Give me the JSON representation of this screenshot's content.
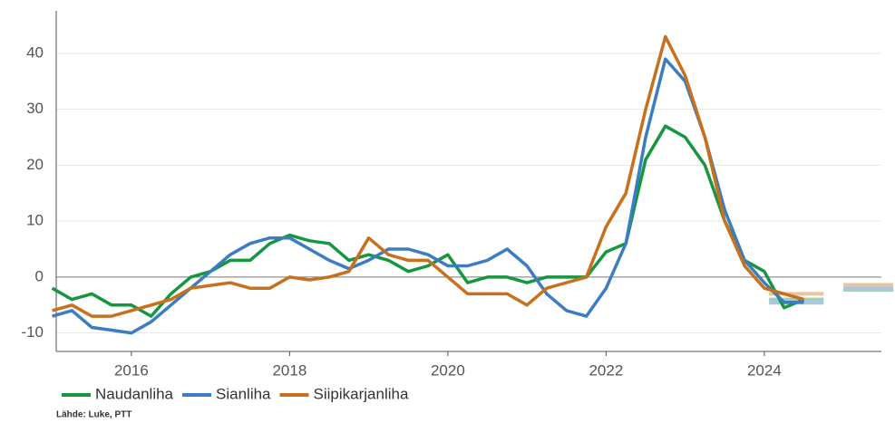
{
  "chart_data": {
    "type": "line",
    "x": [
      2015.0,
      2015.25,
      2015.5,
      2015.75,
      2016.0,
      2016.25,
      2016.5,
      2016.75,
      2017.0,
      2017.25,
      2017.5,
      2017.75,
      2018.0,
      2018.25,
      2018.5,
      2018.75,
      2019.0,
      2019.25,
      2019.5,
      2019.75,
      2020.0,
      2020.25,
      2020.5,
      2020.75,
      2021.0,
      2021.25,
      2021.5,
      2021.75,
      2022.0,
      2022.25,
      2022.5,
      2022.75,
      2023.0,
      2023.25,
      2023.5,
      2023.75,
      2024.0,
      2024.25,
      2024.5
    ],
    "series": [
      {
        "name": "Naudanliha",
        "color": "#15963f",
        "values": [
          -2,
          -4,
          -3,
          -5,
          -5,
          -7,
          -3,
          0,
          1,
          3,
          3,
          6,
          7.5,
          6.5,
          6,
          3,
          4,
          3,
          1,
          2,
          4,
          -1,
          0,
          0,
          -1,
          0,
          0,
          0,
          4.5,
          6,
          21,
          27,
          25,
          20,
          10,
          3,
          1,
          -5.5,
          -4
        ]
      },
      {
        "name": "Sianliha",
        "color": "#3b7dc0",
        "values": [
          -7,
          -6,
          -9,
          -9.5,
          -10,
          -8,
          -5,
          -2,
          1,
          4,
          6,
          7,
          7,
          5,
          3,
          1.5,
          3,
          5,
          5,
          4,
          2,
          2,
          3,
          5,
          2,
          -3,
          -6,
          -7,
          -2,
          6,
          25,
          39,
          35,
          25,
          12,
          3,
          -1,
          -4.5,
          -4.5
        ]
      },
      {
        "name": "Siipikarjanliha",
        "color": "#c8701e",
        "values": [
          -6,
          -5,
          -7,
          -7,
          -6,
          -5,
          -4,
          -2,
          -1.5,
          -1,
          -2,
          -2,
          0,
          -0.5,
          0,
          1,
          7,
          4,
          3,
          3,
          0,
          -3,
          -3,
          -3,
          -5,
          -2,
          -1,
          0,
          9,
          15,
          30,
          43,
          36,
          25,
          10,
          2,
          -2,
          -3,
          -4
        ]
      }
    ],
    "forecast_periods": [
      [
        2024.06,
        2024.75
      ],
      [
        2025.0,
        2025.63
      ]
    ],
    "forecast": [
      {
        "color": "#9ed3ad",
        "values": [
          -4,
          -2.3
        ]
      },
      {
        "color": "#a9c6e6",
        "values": [
          -4.6,
          -2
        ]
      },
      {
        "color": "#ebc49d",
        "values": [
          -3,
          -1.4
        ]
      }
    ],
    "xlim": [
      2015.05,
      2025.48
    ],
    "xticks": [
      2016,
      2018,
      2020,
      2022,
      2024
    ],
    "ylim": [
      -13.3,
      47.6
    ],
    "yticks": [
      -10,
      0,
      10,
      20,
      30,
      40
    ],
    "grid": true,
    "source": "Lähde: Luke, PTT"
  }
}
